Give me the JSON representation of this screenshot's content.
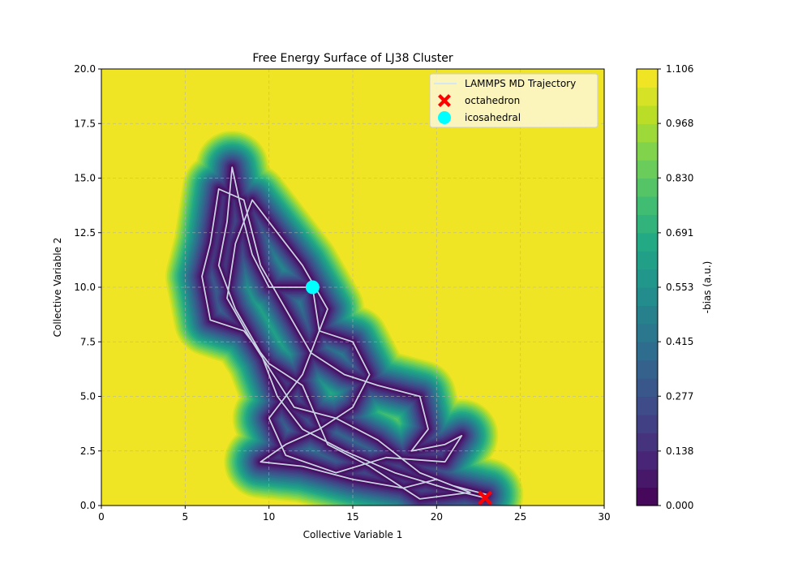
{
  "chart_data": {
    "type": "contour",
    "title": "Free Energy Surface of LJ38 Cluster",
    "xlabel": "Collective Variable 1",
    "ylabel": "Collective Variable 2",
    "xlim": [
      0,
      30
    ],
    "ylim": [
      0,
      20
    ],
    "x_ticks": [
      "0",
      "5",
      "10",
      "15",
      "20",
      "25",
      "30"
    ],
    "y_ticks": [
      "0.0",
      "2.5",
      "5.0",
      "7.5",
      "10.0",
      "12.5",
      "15.0",
      "17.5",
      "20.0"
    ],
    "grid": true,
    "colorbar": {
      "label": "-bias (a.u.)",
      "range": [
        0,
        1.106
      ],
      "ticks": [
        "0.000",
        "0.138",
        "0.277",
        "0.415",
        "0.553",
        "0.691",
        "0.830",
        "0.968",
        "1.106"
      ],
      "levels": 24,
      "colormap": [
        "#440154",
        "#482475",
        "#414487",
        "#355f8d",
        "#2a788e",
        "#21918c",
        "#22a884",
        "#44bf70",
        "#7ad151",
        "#bddf26",
        "#fde725"
      ]
    },
    "legend": {
      "placement": "top-right",
      "entries": [
        {
          "label": "LAMMPS MD Trajectory",
          "color": "#d4e8f2",
          "marker": "line"
        },
        {
          "label": "octahedron",
          "color": "#ff0000",
          "marker": "X"
        },
        {
          "label": "icosahedral",
          "color": "#00ffff",
          "marker": "circle"
        }
      ]
    },
    "points": {
      "octahedron": {
        "x": 22.9,
        "y": 0.35
      },
      "icosahedral": {
        "x": 12.6,
        "y": 10.0
      }
    },
    "trajectory_waypoints": [
      [
        22.9,
        0.35
      ],
      [
        20.5,
        0.8
      ],
      [
        17.5,
        1.5
      ],
      [
        14.5,
        2.5
      ],
      [
        12.0,
        3.5
      ],
      [
        10.5,
        5.0
      ],
      [
        9.5,
        7.0
      ],
      [
        8.0,
        9.0
      ],
      [
        7.0,
        11.0
      ],
      [
        7.5,
        13.0
      ],
      [
        7.8,
        15.5
      ],
      [
        8.5,
        13.0
      ],
      [
        9.0,
        11.5
      ],
      [
        10.0,
        10.0
      ],
      [
        12.6,
        10.0
      ],
      [
        13.0,
        8.0
      ],
      [
        15.0,
        7.5
      ],
      [
        16.0,
        6.0
      ],
      [
        15.0,
        4.5
      ],
      [
        13.0,
        3.5
      ],
      [
        11.0,
        2.8
      ],
      [
        9.5,
        2.0
      ],
      [
        12.0,
        1.8
      ],
      [
        15.0,
        1.2
      ],
      [
        18.0,
        0.8
      ],
      [
        20.0,
        1.2
      ],
      [
        22.0,
        0.6
      ],
      [
        19.0,
        0.3
      ],
      [
        16.0,
        1.8
      ],
      [
        13.5,
        2.8
      ],
      [
        12.0,
        5.5
      ],
      [
        10.0,
        6.5
      ],
      [
        8.5,
        8.0
      ],
      [
        6.5,
        8.5
      ],
      [
        6.0,
        10.5
      ],
      [
        6.5,
        12.0
      ],
      [
        7.0,
        14.5
      ],
      [
        8.5,
        14.0
      ],
      [
        9.5,
        11.0
      ],
      [
        11.0,
        9.0
      ],
      [
        12.5,
        7.0
      ],
      [
        14.5,
        6.0
      ],
      [
        16.5,
        5.5
      ],
      [
        19.0,
        5.0
      ],
      [
        19.5,
        3.5
      ],
      [
        18.5,
        2.5
      ],
      [
        20.5,
        2.8
      ],
      [
        21.5,
        3.2
      ],
      [
        20.5,
        2.0
      ],
      [
        17.0,
        2.2
      ],
      [
        14.0,
        1.5
      ],
      [
        11.0,
        2.3
      ],
      [
        10.0,
        4.0
      ],
      [
        12.0,
        6.0
      ],
      [
        13.5,
        9.0
      ],
      [
        12.0,
        11.0
      ],
      [
        10.5,
        12.5
      ],
      [
        9.0,
        14.0
      ],
      [
        8.0,
        12.0
      ],
      [
        7.5,
        9.5
      ],
      [
        9.0,
        7.5
      ],
      [
        11.5,
        4.5
      ],
      [
        14.0,
        4.0
      ],
      [
        16.5,
        3.0
      ],
      [
        19.0,
        1.5
      ],
      [
        21.0,
        0.9
      ],
      [
        23.0,
        0.5
      ]
    ]
  }
}
